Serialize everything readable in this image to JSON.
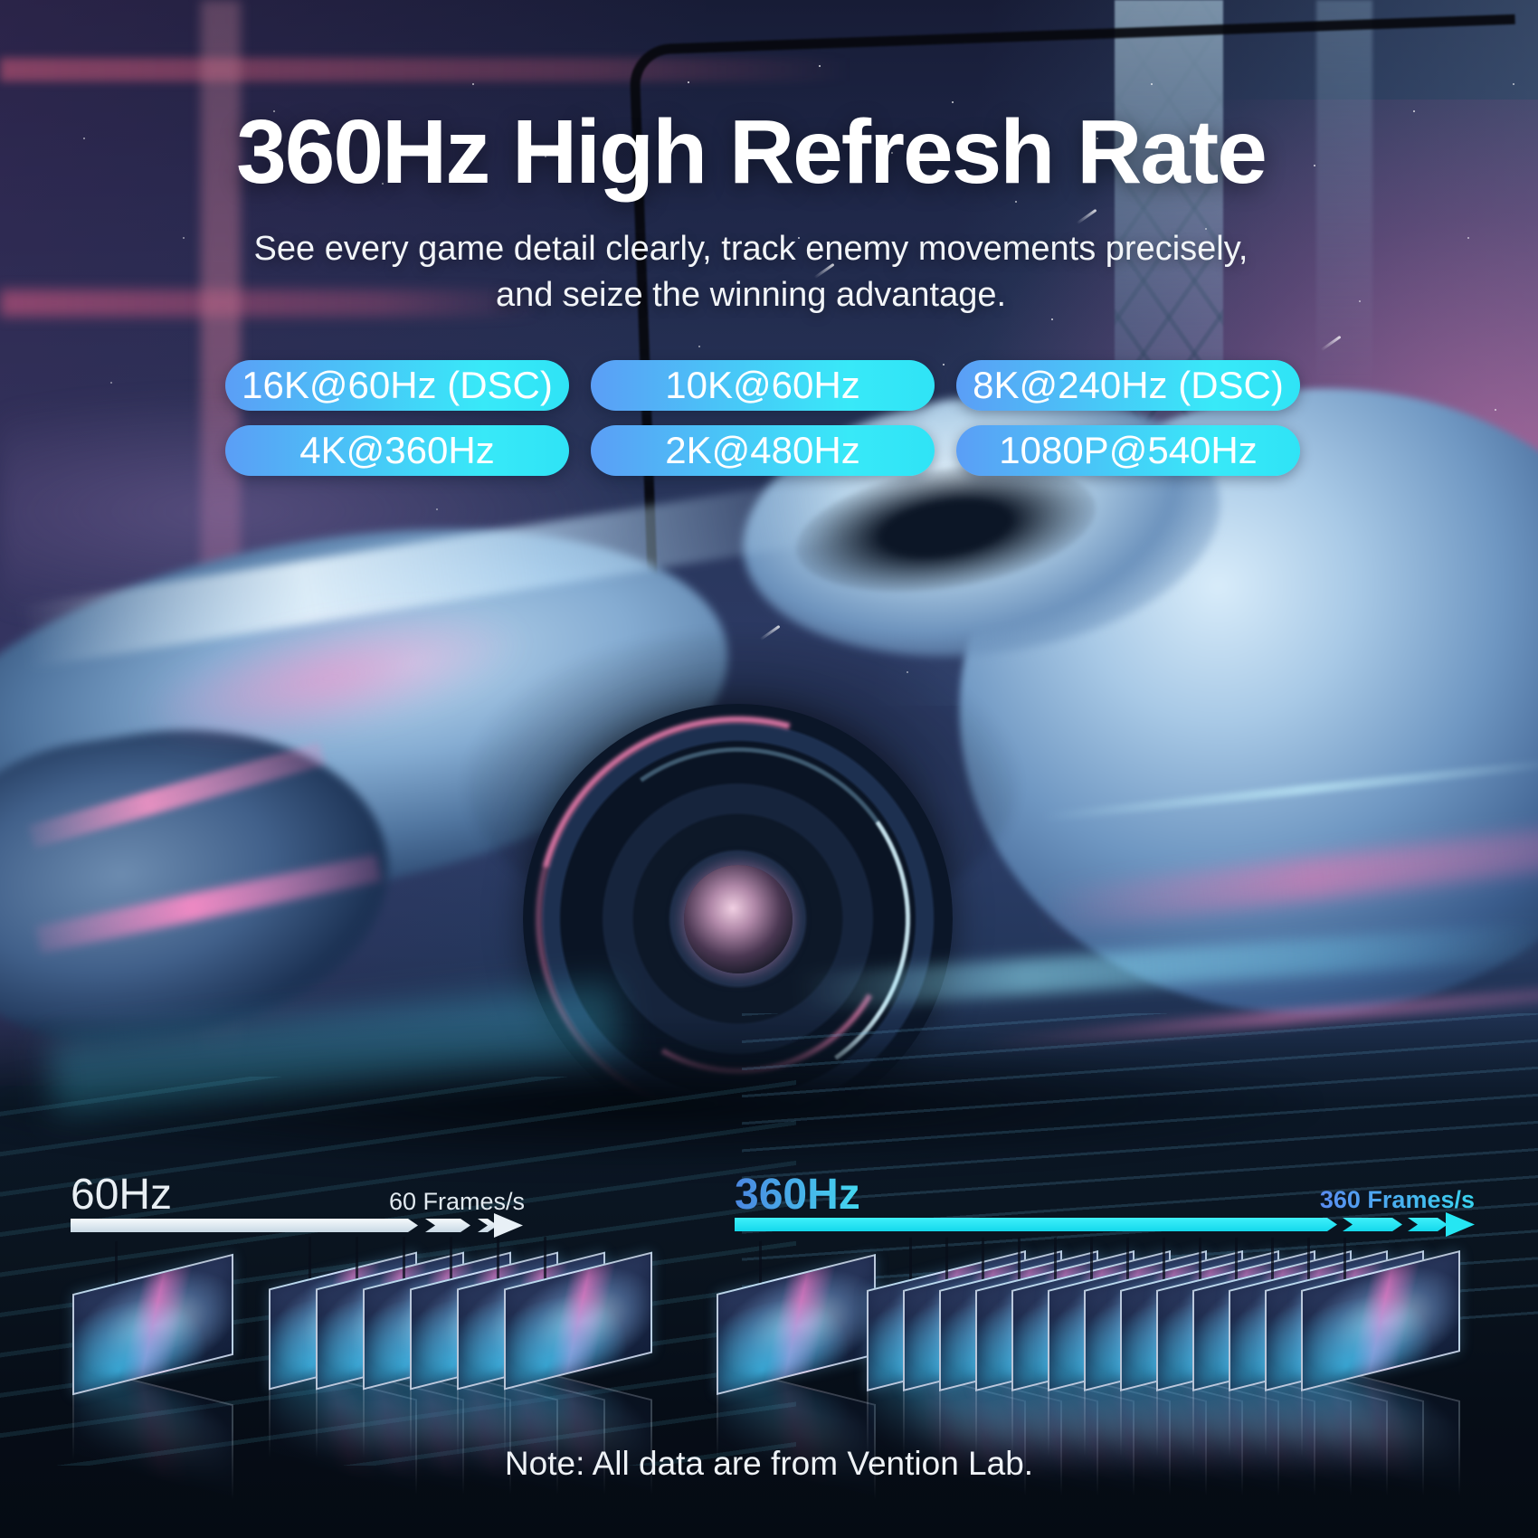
{
  "hero": {
    "title": "360Hz High Refresh Rate",
    "subtitle_line1": "See every game detail clearly, track enemy movements precisely,",
    "subtitle_line2": "and seize the winning advantage."
  },
  "spec_badges": {
    "gradient_start": "#5B9EF6",
    "gradient_end": "#2FE3F6",
    "items": [
      "16K@60Hz (DSC)",
      "10K@60Hz",
      "8K@240Hz (DSC)",
      "4K@360Hz",
      "2K@480Hz",
      "1080P@540Hz"
    ]
  },
  "comparison": {
    "low": {
      "rate_label": "60Hz",
      "frames_label": "60 Frames/s",
      "single_frame_count": 1,
      "stacked_frame_count": 6,
      "accent_color": "#E8EEF3",
      "bar_color": "#E8F0F6"
    },
    "high": {
      "rate_label": "360Hz",
      "frames_label": "360 Frames/s",
      "single_frame_count": 1,
      "stacked_frame_count": 13,
      "accent_color_start": "#4A86E0",
      "accent_color_end": "#44D9F0",
      "bar_color": "#1FE2F0"
    }
  },
  "note_text": "Note: All data are from Vention Lab."
}
